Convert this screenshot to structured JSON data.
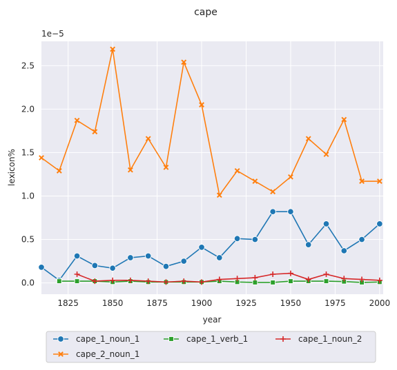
{
  "chart_data": {
    "type": "line",
    "title": "cape",
    "xlabel": "year",
    "ylabel": "lexicon%",
    "y_offset_label": "1e−5",
    "xlim": [
      1810,
      2002
    ],
    "ylim": [
      -0.13,
      2.78
    ],
    "x_ticks": [
      1825,
      1850,
      1875,
      1900,
      1925,
      1950,
      1975,
      2000
    ],
    "y_ticks": [
      0.0,
      0.5,
      1.0,
      1.5,
      2.0,
      2.5
    ],
    "x_tick_labels": [
      "1825",
      "1850",
      "1875",
      "1900",
      "1925",
      "1950",
      "1975",
      "2000"
    ],
    "y_tick_labels": [
      "0.0",
      "0.5",
      "1.0",
      "1.5",
      "2.0",
      "2.5"
    ],
    "grid": true,
    "legend_placement": "below",
    "series": [
      {
        "name": "cape_1_noun_1",
        "color": "#1f77b4",
        "marker": "circle",
        "x": [
          1810,
          1820,
          1830,
          1840,
          1850,
          1860,
          1870,
          1880,
          1890,
          1900,
          1910,
          1920,
          1930,
          1940,
          1950,
          1960,
          1970,
          1980,
          1990,
          2000
        ],
        "y": [
          0.18,
          0.03,
          0.31,
          0.2,
          0.17,
          0.29,
          0.31,
          0.19,
          0.25,
          0.41,
          0.29,
          0.51,
          0.5,
          0.82,
          0.82,
          0.44,
          0.68,
          0.37,
          0.5,
          0.68
        ]
      },
      {
        "name": "cape_2_noun_1",
        "color": "#ff7f0e",
        "marker": "x",
        "x": [
          1810,
          1820,
          1830,
          1840,
          1850,
          1860,
          1870,
          1880,
          1890,
          1900,
          1910,
          1920,
          1930,
          1940,
          1950,
          1960,
          1970,
          1980,
          1990,
          2000
        ],
        "y": [
          1.44,
          1.29,
          1.87,
          1.74,
          2.69,
          1.3,
          1.66,
          1.33,
          2.54,
          2.05,
          1.01,
          1.29,
          1.17,
          1.05,
          1.22,
          1.66,
          1.48,
          1.88,
          1.17,
          1.17
        ]
      },
      {
        "name": "cape_1_verb_1",
        "color": "#2ca02c",
        "marker": "square",
        "x": [
          1820,
          1830,
          1840,
          1850,
          1860,
          1870,
          1880,
          1890,
          1900,
          1910,
          1920,
          1930,
          1940,
          1950,
          1960,
          1970,
          1980,
          1990,
          2000
        ],
        "y": [
          0.02,
          0.02,
          0.02,
          0.01,
          0.02,
          0.01,
          0.01,
          0.01,
          0.01,
          0.02,
          0.01,
          0.005,
          0.005,
          0.02,
          0.02,
          0.02,
          0.015,
          0.005,
          0.01
        ]
      },
      {
        "name": "cape_1_noun_2",
        "color": "#d62728",
        "marker": "plus",
        "x": [
          1830,
          1840,
          1850,
          1860,
          1870,
          1880,
          1890,
          1900,
          1910,
          1920,
          1930,
          1940,
          1950,
          1960,
          1970,
          1980,
          1990,
          2000
        ],
        "y": [
          0.1,
          0.02,
          0.03,
          0.03,
          0.02,
          0.01,
          0.02,
          0.01,
          0.04,
          0.05,
          0.06,
          0.1,
          0.11,
          0.04,
          0.1,
          0.05,
          0.04,
          0.03
        ]
      }
    ],
    "legend_order": [
      "cape_1_noun_1",
      "cape_1_verb_1",
      "cape_1_noun_2",
      "cape_2_noun_1"
    ]
  }
}
